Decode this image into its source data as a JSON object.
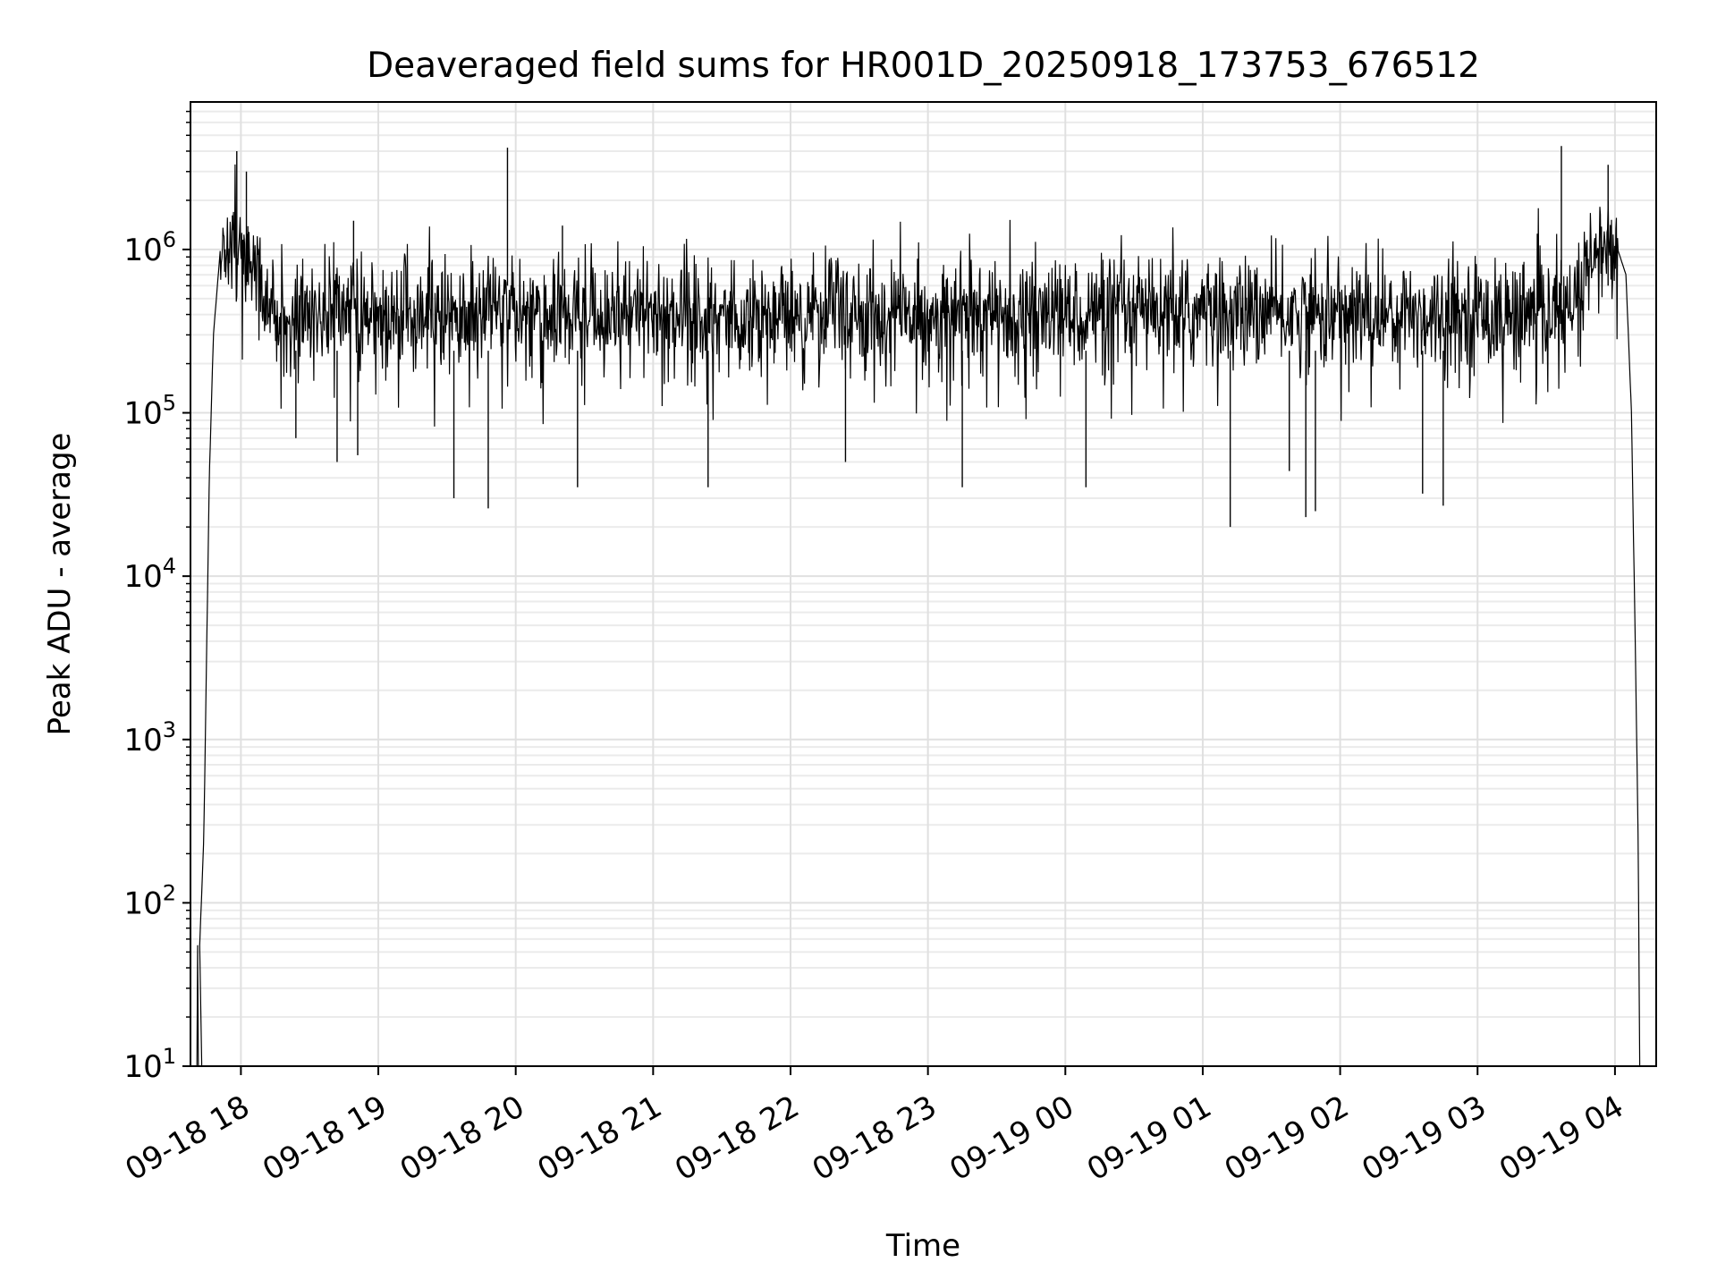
{
  "chart_data": {
    "type": "line",
    "title": "Deaveraged field sums for HR001D_20250918_173753_676512",
    "xlabel": "Time",
    "ylabel": "Peak ADU - average",
    "yscale": "log",
    "ylim": [
      10,
      8000000
    ],
    "xlim_hours": [
      17.633,
      28.3
    ],
    "grid": "on",
    "line_color": "#000000",
    "x_ticks": [
      {
        "label": "09-18 18",
        "hours": 18
      },
      {
        "label": "09-18 19",
        "hours": 19
      },
      {
        "label": "09-18 20",
        "hours": 20
      },
      {
        "label": "09-18 21",
        "hours": 21
      },
      {
        "label": "09-18 22",
        "hours": 22
      },
      {
        "label": "09-18 23",
        "hours": 23
      },
      {
        "label": "09-19 00",
        "hours": 24
      },
      {
        "label": "09-19 01",
        "hours": 25
      },
      {
        "label": "09-19 02",
        "hours": 26
      },
      {
        "label": "09-19 03",
        "hours": 27
      },
      {
        "label": "09-19 04",
        "hours": 28
      }
    ],
    "y_ticks": [
      {
        "base": "10",
        "exp": "1",
        "value": 10
      },
      {
        "base": "10",
        "exp": "2",
        "value": 100
      },
      {
        "base": "10",
        "exp": "3",
        "value": 1000
      },
      {
        "base": "10",
        "exp": "4",
        "value": 10000
      },
      {
        "base": "10",
        "exp": "5",
        "value": 100000
      },
      {
        "base": "10",
        "exp": "6",
        "value": 1000000
      }
    ],
    "series": [
      {
        "name": "deaveraged field sum",
        "start_hours": 17.63,
        "end_hours": 28.28,
        "baseline_level": 400000,
        "edge_plateau_level": 1000000,
        "onset_points": [
          {
            "hours": 17.7,
            "value": 55
          },
          {
            "hours": 17.73,
            "value": 250
          },
          {
            "hours": 17.77,
            "value": 40000
          },
          {
            "hours": 17.8,
            "value": 300000
          },
          {
            "hours": 17.85,
            "value": 1000000
          }
        ],
        "decay_points": [
          {
            "hours": 28.02,
            "value": 1000000
          },
          {
            "hours": 28.08,
            "value": 700000
          },
          {
            "hours": 28.12,
            "value": 100000
          },
          {
            "hours": 28.15,
            "value": 3000
          },
          {
            "hours": 28.17,
            "value": 200
          },
          {
            "hours": 28.18,
            "value": 10
          }
        ],
        "peaks": [
          {
            "hours": 17.97,
            "value": 4000000
          },
          {
            "hours": 18.04,
            "value": 3000000
          },
          {
            "hours": 18.82,
            "value": 1500000
          },
          {
            "hours": 19.94,
            "value": 4200000
          },
          {
            "hours": 20.34,
            "value": 1400000
          },
          {
            "hours": 27.61,
            "value": 4300000
          },
          {
            "hours": 27.95,
            "value": 3300000
          }
        ],
        "dips": [
          {
            "hours": 18.4,
            "value": 70000
          },
          {
            "hours": 18.7,
            "value": 50000
          },
          {
            "hours": 18.85,
            "value": 55000
          },
          {
            "hours": 19.55,
            "value": 30000
          },
          {
            "hours": 19.8,
            "value": 26000
          },
          {
            "hours": 20.45,
            "value": 35000
          },
          {
            "hours": 21.4,
            "value": 35000
          },
          {
            "hours": 22.4,
            "value": 50000
          },
          {
            "hours": 23.25,
            "value": 35000
          },
          {
            "hours": 24.15,
            "value": 35000
          },
          {
            "hours": 25.2,
            "value": 20000
          },
          {
            "hours": 25.63,
            "value": 44000
          },
          {
            "hours": 25.75,
            "value": 23000
          },
          {
            "hours": 25.82,
            "value": 25000
          },
          {
            "hours": 26.6,
            "value": 32000
          },
          {
            "hours": 26.75,
            "value": 27000
          }
        ]
      }
    ]
  }
}
